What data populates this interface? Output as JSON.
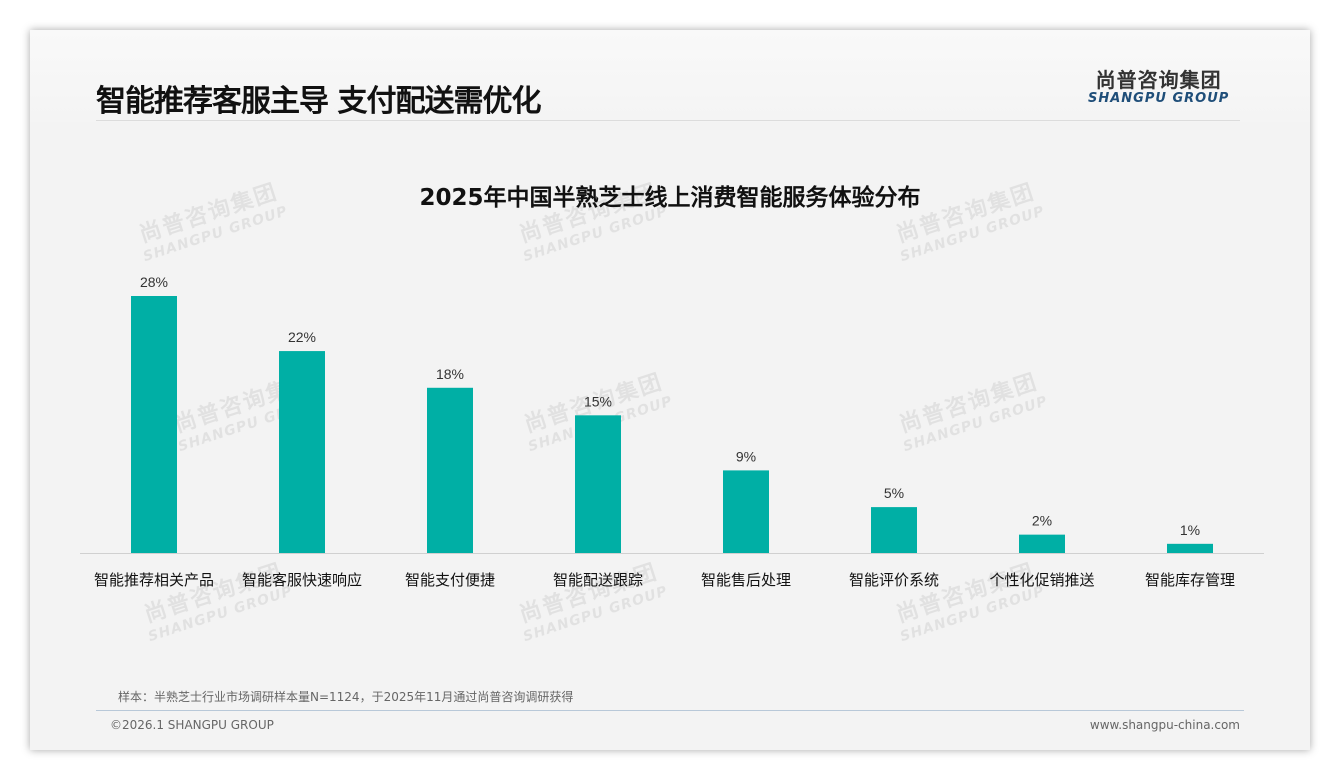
{
  "header": {
    "title": "智能推荐客服主导 支付配送需优化",
    "logo_cn": "尚普咨询集团",
    "logo_en": "SHANGPU GROUP"
  },
  "watermark": {
    "cn": "尚普咨询集团",
    "en": "SHANGPU GROUP"
  },
  "chart_data": {
    "type": "bar",
    "title": "2025年中国半熟芝士线上消费智能服务体验分布",
    "categories": [
      "智能推荐相关产品",
      "智能客服快速响应",
      "智能支付便捷",
      "智能配送跟踪",
      "智能售后处理",
      "智能评价系统",
      "个性化促销推送",
      "智能库存管理"
    ],
    "values": [
      28,
      22,
      18,
      15,
      9,
      5,
      2,
      1
    ],
    "value_labels": [
      "28%",
      "22%",
      "18%",
      "15%",
      "9%",
      "5%",
      "2%",
      "1%"
    ],
    "xlabel": "",
    "ylabel": "",
    "ylim": [
      0,
      30
    ],
    "grid": false,
    "bar_color": "#00afa5"
  },
  "footer": {
    "note": "样本：半熟芝士行业市场调研样本量N=1124，于2025年11月通过尚普咨询调研获得",
    "copyright": "©2026.1 SHANGPU GROUP",
    "website": "www.shangpu-china.com"
  }
}
